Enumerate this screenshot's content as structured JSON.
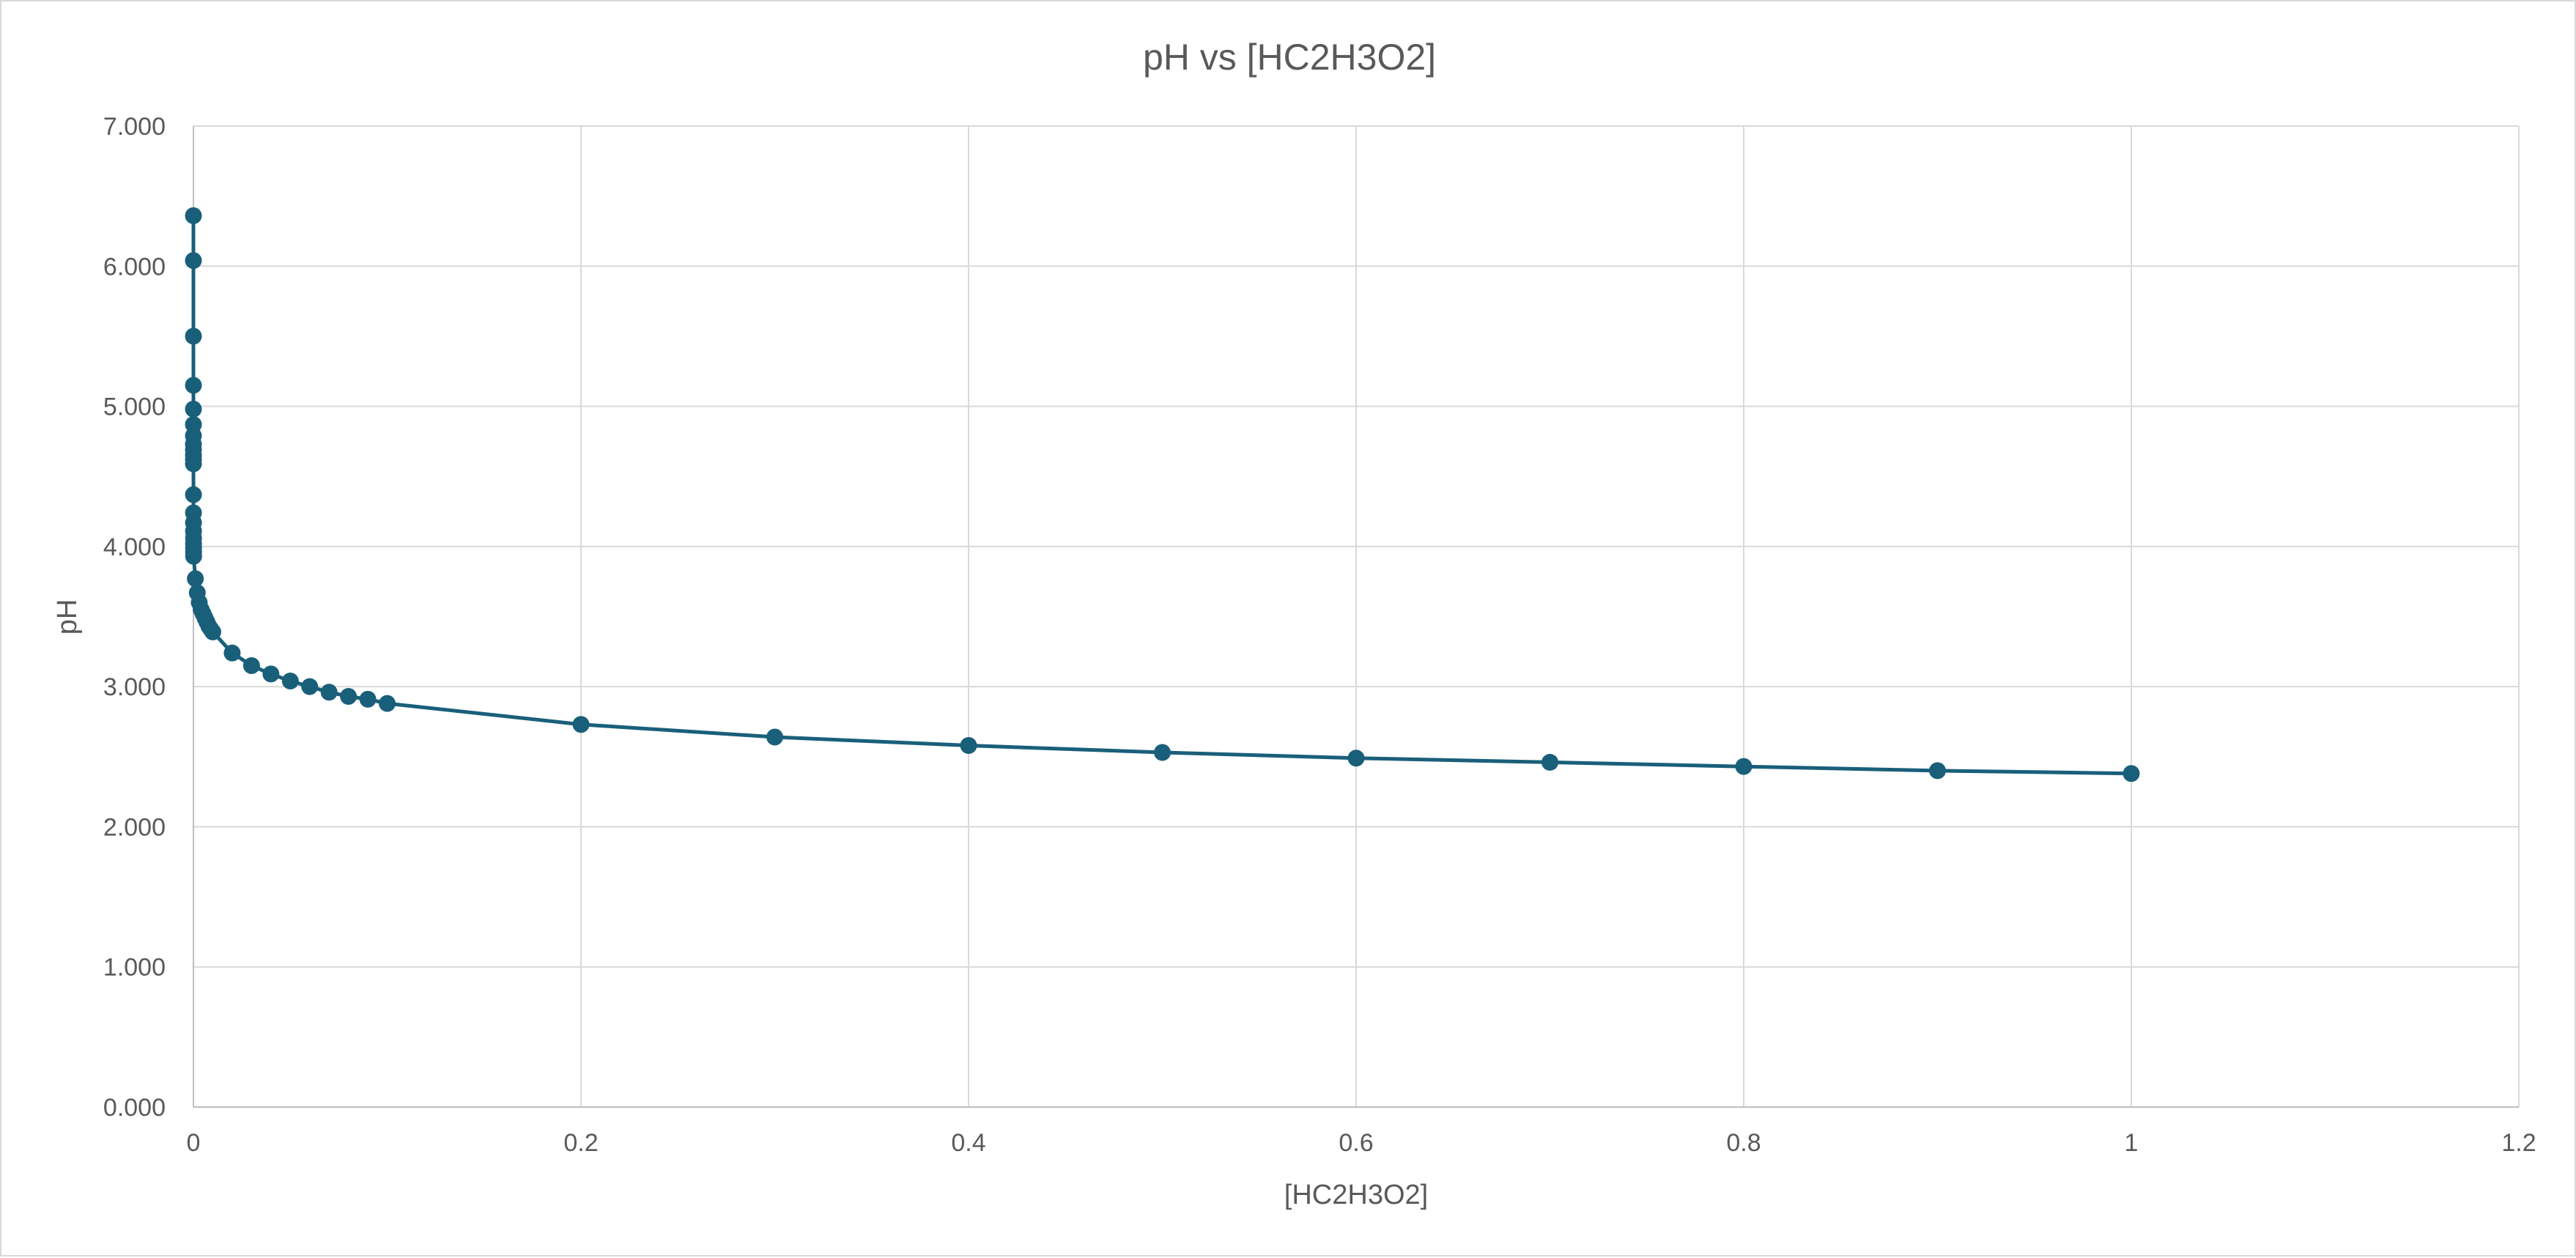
{
  "chart_data": {
    "type": "scatter",
    "title": "pH vs [HC2H3O2]",
    "xlabel": "[HC2H3O2]",
    "ylabel": "pH",
    "xlim": [
      0,
      1.2
    ],
    "ylim": [
      0,
      7
    ],
    "x_ticks": [
      0,
      0.2,
      0.4,
      0.6,
      0.8,
      1,
      1.2
    ],
    "x_tick_labels": [
      "0",
      "0.2",
      "0.4",
      "0.6",
      "0.8",
      "1",
      "1.2"
    ],
    "y_ticks": [
      0,
      1,
      2,
      3,
      4,
      5,
      6,
      7
    ],
    "y_tick_labels": [
      "0.000",
      "1.000",
      "2.000",
      "3.000",
      "4.000",
      "5.000",
      "6.000",
      "7.000"
    ],
    "grid": true,
    "legend": "none",
    "series_color": "#1a5f7a",
    "series": [
      {
        "x": [
          1e-07,
          2e-07,
          1e-06,
          2e-06,
          3e-06,
          4e-06,
          5e-06,
          6e-06,
          7e-06,
          8e-06,
          9e-06,
          1e-05,
          2e-05,
          3e-05,
          4e-05,
          5e-05,
          6e-05,
          7e-05,
          8e-05,
          9e-05,
          0.0001,
          0.001,
          0.002,
          0.003,
          0.004,
          0.005,
          0.006,
          0.007,
          0.008,
          0.009,
          0.01,
          0.02,
          0.03,
          0.04,
          0.05,
          0.06,
          0.07,
          0.08,
          0.09,
          0.1,
          0.2,
          0.3,
          0.4,
          0.5,
          0.6,
          0.7,
          0.8,
          0.9,
          1
        ],
        "y": [
          6.36,
          6.04,
          5.5,
          5.15,
          4.98,
          4.87,
          4.79,
          4.73,
          4.69,
          4.65,
          4.62,
          4.59,
          4.37,
          4.24,
          4.17,
          4.11,
          4.06,
          4.02,
          3.99,
          3.96,
          3.93,
          3.77,
          3.67,
          3.6,
          3.55,
          3.52,
          3.49,
          3.46,
          3.43,
          3.41,
          3.39,
          3.24,
          3.15,
          3.09,
          3.04,
          3.0,
          2.96,
          2.93,
          2.91,
          2.88,
          2.73,
          2.64,
          2.58,
          2.53,
          2.49,
          2.46,
          2.43,
          2.4,
          2.38
        ]
      }
    ]
  }
}
